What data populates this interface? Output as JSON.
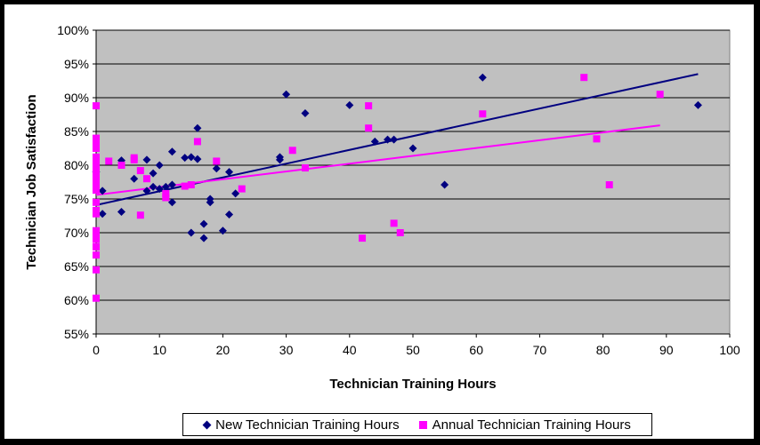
{
  "chart_data": {
    "type": "scatter",
    "xlabel": "Technician Training Hours",
    "ylabel": "Technician Job Satisfaction",
    "xlim": [
      0,
      100
    ],
    "ylim": [
      0.55,
      1.0
    ],
    "x_ticks": [
      "0",
      "10",
      "20",
      "30",
      "40",
      "50",
      "60",
      "70",
      "80",
      "90",
      "100"
    ],
    "y_ticks": [
      "55%",
      "60%",
      "65%",
      "70%",
      "75%",
      "80%",
      "85%",
      "90%",
      "95%",
      "100%"
    ],
    "grid": "horizontal",
    "legend_position": "bottom",
    "plot_background": "#c0c0c0",
    "series": [
      {
        "name": "New Technician Training Hours",
        "marker": "diamond",
        "color": "#000080",
        "trendline": {
          "x": [
            0,
            95
          ],
          "y": [
            0.741,
            0.935
          ]
        },
        "points": [
          [
            0,
            0.79
          ],
          [
            1,
            0.762
          ],
          [
            1,
            0.728
          ],
          [
            4,
            0.807
          ],
          [
            4,
            0.731
          ],
          [
            6,
            0.78
          ],
          [
            8,
            0.808
          ],
          [
            8,
            0.762
          ],
          [
            9,
            0.788
          ],
          [
            9,
            0.768
          ],
          [
            10,
            0.8
          ],
          [
            10,
            0.765
          ],
          [
            11,
            0.768
          ],
          [
            12,
            0.82
          ],
          [
            12,
            0.771
          ],
          [
            12,
            0.745
          ],
          [
            14,
            0.811
          ],
          [
            15,
            0.812
          ],
          [
            15,
            0.7
          ],
          [
            16,
            0.855
          ],
          [
            16,
            0.809
          ],
          [
            17,
            0.713
          ],
          [
            17,
            0.692
          ],
          [
            18,
            0.75
          ],
          [
            18,
            0.745
          ],
          [
            19,
            0.795
          ],
          [
            20,
            0.703
          ],
          [
            21,
            0.79
          ],
          [
            21,
            0.727
          ],
          [
            22,
            0.758
          ],
          [
            29,
            0.812
          ],
          [
            29,
            0.808
          ],
          [
            30,
            0.905
          ],
          [
            33,
            0.877
          ],
          [
            40,
            0.889
          ],
          [
            44,
            0.835
          ],
          [
            46,
            0.838
          ],
          [
            47,
            0.838
          ],
          [
            50,
            0.825
          ],
          [
            55,
            0.771
          ],
          [
            61,
            0.93
          ],
          [
            95,
            0.889
          ]
        ]
      },
      {
        "name": "Annual Technician Training Hours",
        "marker": "square",
        "color": "#ff00ff",
        "trendline": {
          "x": [
            0,
            89
          ],
          "y": [
            0.756,
            0.859
          ]
        },
        "points": [
          [
            0,
            0.888
          ],
          [
            0,
            0.84
          ],
          [
            0,
            0.833
          ],
          [
            0,
            0.825
          ],
          [
            0,
            0.812
          ],
          [
            0,
            0.805
          ],
          [
            0,
            0.797
          ],
          [
            0,
            0.791
          ],
          [
            0,
            0.786
          ],
          [
            0,
            0.779
          ],
          [
            0,
            0.773
          ],
          [
            0,
            0.763
          ],
          [
            0,
            0.745
          ],
          [
            0,
            0.733
          ],
          [
            0,
            0.728
          ],
          [
            0,
            0.703
          ],
          [
            0,
            0.697
          ],
          [
            0,
            0.69
          ],
          [
            0,
            0.679
          ],
          [
            0,
            0.667
          ],
          [
            0,
            0.645
          ],
          [
            0,
            0.603
          ],
          [
            2,
            0.806
          ],
          [
            4,
            0.8
          ],
          [
            6,
            0.811
          ],
          [
            6,
            0.808
          ],
          [
            7,
            0.792
          ],
          [
            7,
            0.726
          ],
          [
            8,
            0.78
          ],
          [
            11,
            0.758
          ],
          [
            11,
            0.752
          ],
          [
            14,
            0.769
          ],
          [
            15,
            0.771
          ],
          [
            16,
            0.835
          ],
          [
            19,
            0.806
          ],
          [
            23,
            0.765
          ],
          [
            31,
            0.822
          ],
          [
            33,
            0.796
          ],
          [
            42,
            0.692
          ],
          [
            43,
            0.888
          ],
          [
            43,
            0.855
          ],
          [
            47,
            0.714
          ],
          [
            48,
            0.7
          ],
          [
            61,
            0.876
          ],
          [
            77,
            0.93
          ],
          [
            79,
            0.839
          ],
          [
            81,
            0.771
          ],
          [
            89,
            0.905
          ]
        ]
      }
    ]
  }
}
